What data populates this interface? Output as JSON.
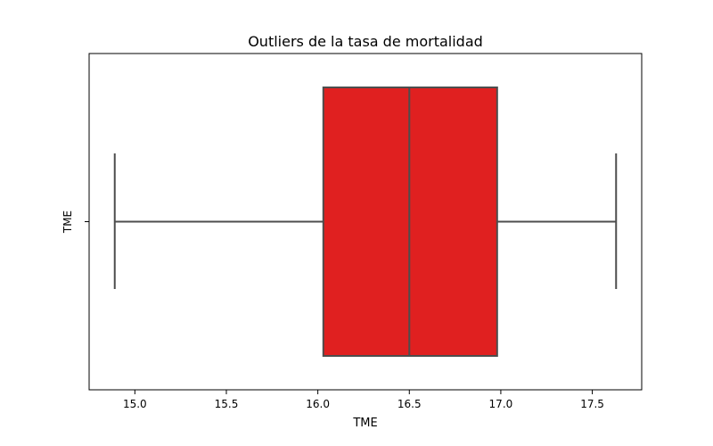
{
  "chart_data": {
    "type": "boxplot",
    "orientation": "horizontal",
    "title": "Outliers de la tasa de mortalidad",
    "xlabel": "TME",
    "ylabel": "",
    "category_labels": [
      "TME"
    ],
    "xlim": [
      14.75,
      17.77
    ],
    "xticks": [
      "15.0",
      "15.5",
      "16.0",
      "16.5",
      "17.0",
      "17.5"
    ],
    "box": {
      "whisker_low": 14.89,
      "q1": 16.03,
      "median": 16.5,
      "q3": 16.98,
      "whisker_high": 17.63,
      "outliers": []
    },
    "colors": {
      "box_fill": "#e02020",
      "lines": "#4d4d4d",
      "axes": "#000000"
    },
    "grid": false
  }
}
